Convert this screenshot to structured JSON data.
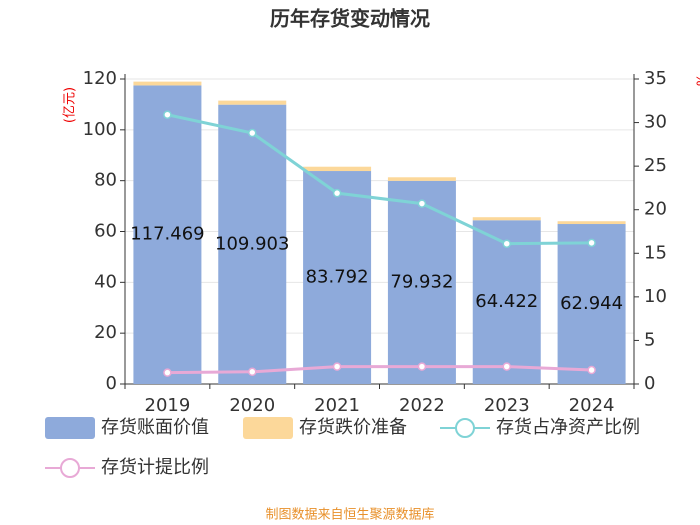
{
  "chart_data": {
    "type": "bar-line",
    "title": "历年存货变动情况",
    "categories": [
      "2019",
      "2020",
      "2021",
      "2022",
      "2023",
      "2024"
    ],
    "ylabel": "(亿元)",
    "y2label": "%",
    "ylim": [
      0,
      120
    ],
    "yticks": [
      0,
      20,
      40,
      60,
      80,
      100,
      120
    ],
    "y2lim": [
      0,
      35
    ],
    "y2ticks": [
      0,
      5,
      10,
      15,
      20,
      25,
      30,
      35
    ],
    "grid": true,
    "series": [
      {
        "name": "存货账面价值",
        "type": "bar",
        "color": "#8eaadb",
        "values": [
          117.469,
          109.903,
          83.792,
          79.932,
          64.422,
          62.944
        ]
      },
      {
        "name": "存货跌价准备",
        "type": "bar",
        "color": "#fcd89a",
        "values": [
          1.5,
          1.6,
          1.7,
          1.4,
          1.2,
          1.1
        ]
      },
      {
        "name": "存货占净资产比例",
        "type": "line",
        "axis": "y2",
        "color": "#7fd3d6",
        "values": [
          30.9,
          28.8,
          21.9,
          20.7,
          16.1,
          16.2
        ]
      },
      {
        "name": "存货计提比例",
        "type": "line",
        "axis": "y2",
        "color": "#e8a9d6",
        "values": [
          1.3,
          1.4,
          2.0,
          2.0,
          2.0,
          1.6
        ]
      }
    ],
    "source": "制图数据来自恒生聚源数据库"
  }
}
